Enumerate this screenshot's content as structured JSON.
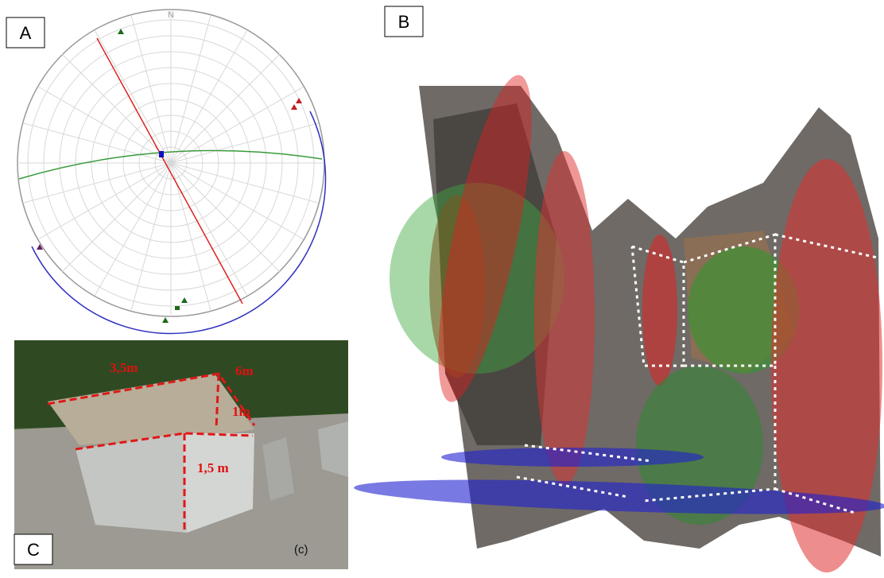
{
  "panels": [
    {
      "label": "A",
      "north": "N"
    },
    {
      "label": "B"
    },
    {
      "label": "C",
      "annotations": [
        "3,5m",
        "6m",
        "1m",
        "1,5 m"
      ],
      "credit": "(c)"
    }
  ]
}
